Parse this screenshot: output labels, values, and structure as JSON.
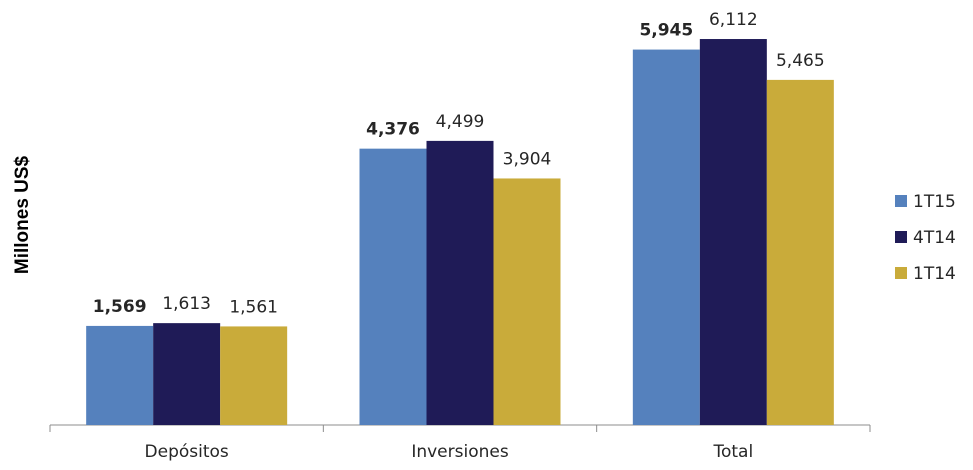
{
  "chart_data": {
    "type": "bar",
    "title": "",
    "xlabel": "",
    "ylabel": "Millones  US$",
    "categories": [
      "Depósitos",
      "Inversiones",
      "Total"
    ],
    "series": [
      {
        "name": "1T15",
        "color": "#5581BD",
        "values": [
          1569,
          4376,
          5945
        ],
        "labels": [
          "1,569",
          "4,376",
          "5,945"
        ],
        "label_bold": true
      },
      {
        "name": "4T14",
        "color": "#1F1B57",
        "values": [
          1613,
          4499,
          6112
        ],
        "labels": [
          "1,613",
          "4,499",
          "6,112"
        ],
        "label_bold": false
      },
      {
        "name": "1T14",
        "color": "#C9AB3A",
        "values": [
          1561,
          3904,
          5465
        ],
        "labels": [
          "1,561",
          "3,904",
          "5,465"
        ],
        "label_bold": false
      }
    ],
    "ylim": [
      0,
      6800
    ],
    "grid": false,
    "legend_position": "right"
  }
}
